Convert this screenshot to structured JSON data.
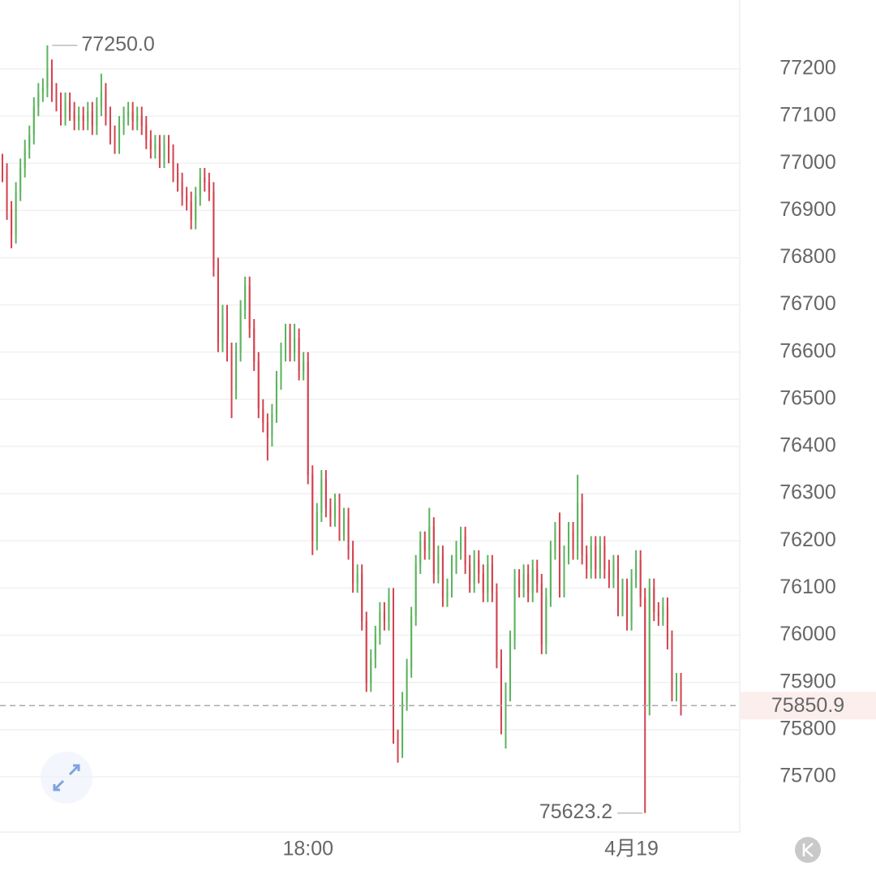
{
  "chart_data": {
    "type": "candlestick",
    "categories": [
      null,
      null,
      null,
      null,
      null,
      null,
      null,
      null,
      null,
      null,
      null,
      null,
      null,
      null,
      null,
      null,
      null,
      null,
      null,
      null,
      null,
      null,
      null,
      null,
      null,
      null,
      null,
      null,
      null,
      null,
      null,
      null,
      null,
      null,
      null,
      null,
      null,
      null,
      null,
      null,
      null,
      null,
      null,
      null,
      null,
      null,
      null,
      null,
      null,
      null,
      null,
      null,
      null,
      null,
      null,
      null,
      null,
      null,
      null,
      null,
      null,
      null,
      null,
      null,
      null,
      null,
      null,
      null,
      "18:00",
      null,
      null,
      null,
      null,
      null,
      null,
      null,
      null,
      null,
      null,
      null,
      null,
      null,
      null,
      null,
      null,
      null,
      null,
      null,
      null,
      null,
      null,
      null,
      null,
      null,
      null,
      null,
      null,
      null,
      null,
      null,
      null,
      null,
      null,
      null,
      null,
      null,
      null,
      null,
      null,
      null,
      null,
      null,
      null,
      null,
      null,
      null,
      null,
      null,
      null,
      null,
      null,
      null,
      null,
      null,
      null,
      null,
      null,
      null,
      null,
      null,
      null,
      null,
      null,
      null,
      null,
      null,
      null,
      null,
      null,
      null,
      "4月19",
      null,
      null,
      null,
      null,
      null,
      null,
      null,
      null,
      null,
      null,
      null
    ],
    "open": [
      77000,
      76980,
      76900,
      76850,
      76940,
      76990,
      77030,
      77060,
      77120,
      77150,
      77160,
      77200,
      77150,
      77130,
      77100,
      77130,
      77110,
      77090,
      77100,
      77090,
      77110,
      77080,
      77120,
      77150,
      77100,
      77060,
      77040,
      77080,
      77100,
      77110,
      77090,
      77100,
      77080,
      77050,
      77030,
      77040,
      77010,
      77040,
      77020,
      76980,
      76960,
      76930,
      76920,
      76880,
      76930,
      76970,
      76960,
      76940,
      76780,
      76620,
      76680,
      76600,
      76520,
      76600,
      76690,
      76740,
      76650,
      76580,
      76480,
      76450,
      76420,
      76470,
      76540,
      76600,
      76640,
      76600,
      76630,
      76560,
      76580,
      76340,
      76200,
      76260,
      76330,
      76270,
      76250,
      76280,
      76220,
      76250,
      76180,
      76110,
      76130,
      76030,
      75900,
      75950,
      76000,
      76050,
      76030,
      76080,
      75780,
      75760,
      75860,
      75930,
      76040,
      76150,
      76200,
      76180,
      76230,
      76130,
      76170,
      76080,
      76100,
      76150,
      76180,
      76210,
      76150,
      76110,
      76160,
      76130,
      76090,
      76150,
      76090,
      75950,
      75820,
      75880,
      75990,
      76120,
      76100,
      76130,
      76090,
      76140,
      76110,
      75980,
      76080,
      76180,
      76220,
      76100,
      76170,
      76220,
      76180,
      76280,
      76170,
      76140,
      76190,
      76140,
      76190,
      76140,
      76120,
      76150,
      76060,
      76100,
      76030,
      76120,
      76160,
      76080,
      75850,
      76100,
      76050,
      76040,
      76060,
      75990,
      75880,
      75900
    ],
    "high": [
      77020,
      77000,
      76920,
      76960,
      77010,
      77050,
      77080,
      77140,
      77170,
      77180,
      77250,
      77220,
      77170,
      77150,
      77150,
      77150,
      77130,
      77120,
      77120,
      77130,
      77130,
      77140,
      77190,
      77170,
      77120,
      77080,
      77100,
      77120,
      77130,
      77130,
      77120,
      77120,
      77100,
      77070,
      77060,
      77060,
      77060,
      77060,
      77040,
      77000,
      76980,
      76950,
      76940,
      76950,
      76990,
      76990,
      76980,
      76960,
      76800,
      76700,
      76700,
      76620,
      76620,
      76710,
      76760,
      76760,
      76670,
      76600,
      76500,
      76470,
      76490,
      76560,
      76620,
      76660,
      76660,
      76660,
      76650,
      76600,
      76600,
      76360,
      76280,
      76350,
      76350,
      76290,
      76300,
      76300,
      76270,
      76270,
      76200,
      76150,
      76150,
      76050,
      75970,
      76020,
      76070,
      76070,
      76100,
      76100,
      75800,
      75880,
      75950,
      76060,
      76170,
      76220,
      76220,
      76270,
      76250,
      76190,
      76190,
      76120,
      76170,
      76200,
      76230,
      76230,
      76170,
      76180,
      76180,
      76150,
      76170,
      76170,
      76110,
      75970,
      75900,
      76010,
      76140,
      76140,
      76150,
      76150,
      76160,
      76160,
      76130,
      76100,
      76200,
      76240,
      76260,
      76190,
      76240,
      76240,
      76340,
      76300,
      76190,
      76210,
      76210,
      76210,
      76210,
      76160,
      76170,
      76170,
      76120,
      76120,
      76140,
      76180,
      76180,
      76100,
      76120,
      76120,
      76070,
      76080,
      76080,
      76010,
      75920,
      75920
    ],
    "low": [
      76960,
      76880,
      76820,
      76830,
      76920,
      76970,
      77010,
      77040,
      77100,
      77130,
      77140,
      77130,
      77110,
      77080,
      77080,
      77090,
      77070,
      77070,
      77070,
      77070,
      77060,
      77060,
      77100,
      77080,
      77040,
      77020,
      77020,
      77060,
      77080,
      77070,
      77070,
      77060,
      77030,
      77010,
      77010,
      76990,
      76990,
      77000,
      76960,
      76940,
      76910,
      76900,
      76860,
      76860,
      76910,
      76940,
      76920,
      76760,
      76600,
      76600,
      76580,
      76460,
      76500,
      76580,
      76670,
      76630,
      76560,
      76460,
      76430,
      76370,
      76400,
      76450,
      76520,
      76580,
      76580,
      76580,
      76540,
      76540,
      76320,
      76170,
      76180,
      76240,
      76250,
      76230,
      76230,
      76200,
      76200,
      76160,
      76090,
      76090,
      76010,
      75880,
      75880,
      75930,
      75980,
      76010,
      76010,
      75770,
      75730,
      75740,
      75840,
      75910,
      76020,
      76130,
      76160,
      76160,
      76110,
      76110,
      76060,
      76060,
      76080,
      76130,
      76160,
      76130,
      76090,
      76090,
      76110,
      76070,
      76070,
      76070,
      75930,
      75790,
      75760,
      75860,
      75970,
      76080,
      76080,
      76070,
      76070,
      76090,
      75960,
      75960,
      76060,
      76160,
      76080,
      76080,
      76150,
      76160,
      76160,
      76150,
      76120,
      76120,
      76120,
      76120,
      76120,
      76100,
      76100,
      76040,
      76040,
      76010,
      76010,
      76100,
      76060,
      75623.2,
      75830,
      76030,
      76020,
      76020,
      75970,
      75860,
      75860,
      75830
    ],
    "close": [
      76980,
      76900,
      76850,
      76940,
      76990,
      77030,
      77060,
      77120,
      77150,
      77160,
      77200,
      77150,
      77130,
      77100,
      77130,
      77110,
      77090,
      77100,
      77090,
      77110,
      77080,
      77120,
      77150,
      77100,
      77060,
      77040,
      77080,
      77100,
      77110,
      77090,
      77100,
      77080,
      77050,
      77030,
      77040,
      77010,
      77040,
      77020,
      76980,
      76960,
      76930,
      76920,
      76880,
      76930,
      76970,
      76960,
      76940,
      76780,
      76620,
      76680,
      76600,
      76520,
      76600,
      76690,
      76740,
      76650,
      76580,
      76480,
      76450,
      76420,
      76470,
      76540,
      76600,
      76640,
      76600,
      76630,
      76560,
      76580,
      76340,
      76200,
      76260,
      76330,
      76270,
      76250,
      76280,
      76220,
      76250,
      76180,
      76110,
      76130,
      76030,
      75900,
      75950,
      76000,
      76050,
      76030,
      76080,
      75780,
      75760,
      75860,
      75930,
      76040,
      76150,
      76200,
      76180,
      76230,
      76130,
      76170,
      76080,
      76100,
      76150,
      76180,
      76210,
      76150,
      76110,
      76160,
      76130,
      76090,
      76150,
      76090,
      75950,
      75820,
      75880,
      75990,
      76120,
      76100,
      76130,
      76090,
      76140,
      76110,
      75980,
      76080,
      76180,
      76220,
      76100,
      76170,
      76220,
      76180,
      76280,
      76170,
      76140,
      76190,
      76140,
      76190,
      76140,
      76120,
      76150,
      76060,
      76100,
      76030,
      76120,
      76160,
      76080,
      75850,
      76100,
      76050,
      76040,
      76060,
      75990,
      75880,
      75900,
      75850.9
    ],
    "up_color": "#5cb35e",
    "down_color": "#d3434f",
    "ylim": [
      75583,
      77346
    ],
    "yticks": [
      75700,
      75800,
      75900,
      76000,
      76100,
      76200,
      76300,
      76400,
      76500,
      76600,
      76700,
      76800,
      76900,
      77000,
      77100,
      77200
    ],
    "grid": true,
    "max_label": {
      "value": 77250,
      "label": "77250.0"
    },
    "min_label": {
      "value": 75623.2,
      "label": "75623.2"
    },
    "last_price": {
      "value": 75850.9,
      "label": "75850.9"
    }
  }
}
